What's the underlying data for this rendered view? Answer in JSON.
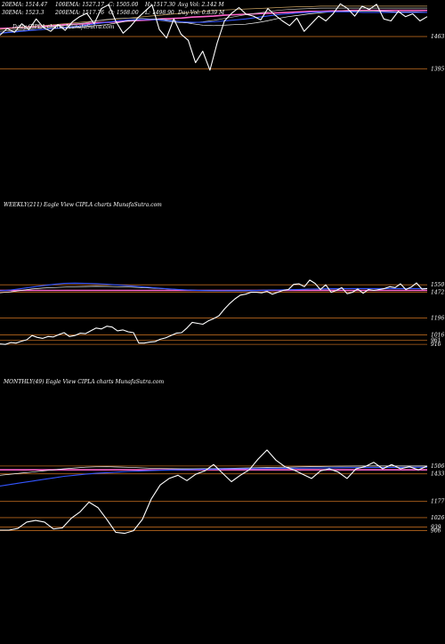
{
  "colors": {
    "background": "#000000",
    "price": "#ffffff",
    "level_line": "#b5651d",
    "ema20": "#ffffff",
    "ema30": "#c0c0c0",
    "ema100": "#c8a060",
    "ema200": "#ff66cc",
    "blue": "#3355ff"
  },
  "chart_data": [
    {
      "type": "line",
      "panel": "daily",
      "title": "",
      "stats": [
        "20EMA: 1514.47",
        "100EMA: 1527.17",
        "C: 1505.00",
        "H: 1517.30",
        "Avg Vol: 2.142 M",
        "30EMA: 1523.3",
        "200EMA: 1517.76",
        "O: 1508.00",
        "L: 1498.90",
        "Day Vol: 0.839 M"
      ],
      "caption": "Daily  CIPLA charts MunafaSutra.com",
      "level_labels": [
        "1463",
        "1395"
      ],
      "levels": [
        1463,
        1395
      ],
      "ylim": [
        1360,
        1540
      ],
      "price": [
        1466,
        1480,
        1472,
        1490,
        1478,
        1500,
        1482,
        1474,
        1488,
        1476,
        1494,
        1505,
        1512,
        1490,
        1522,
        1530,
        1495,
        1470,
        1484,
        1502,
        1516,
        1530,
        1478,
        1460,
        1500,
        1468,
        1455,
        1408,
        1432,
        1392,
        1450,
        1496,
        1512,
        1524,
        1510,
        1506,
        1498,
        1522,
        1508,
        1496,
        1486,
        1502,
        1474,
        1490,
        1506,
        1496,
        1511,
        1532,
        1522,
        1506,
        1527,
        1520,
        1531,
        1500,
        1496,
        1516,
        1505,
        1511,
        1496,
        1505
      ],
      "ema20": [
        1470,
        1473,
        1475,
        1477,
        1478,
        1480,
        1481,
        1482,
        1484,
        1486,
        1488,
        1492,
        1496,
        1498,
        1500,
        1500,
        1497,
        1494,
        1490,
        1487,
        1486,
        1487,
        1488,
        1489,
        1492,
        1496,
        1501,
        1505,
        1508,
        1511,
        1513,
        1515,
        1516,
        1517,
        1517,
        1517,
        1516,
        1515,
        1515,
        1515,
        1514
      ],
      "ema30": [
        1474,
        1476,
        1478,
        1480,
        1482,
        1484,
        1486,
        1489,
        1492,
        1496,
        1499,
        1501,
        1502,
        1502,
        1500,
        1497,
        1494,
        1492,
        1492,
        1494,
        1497,
        1501,
        1505,
        1509,
        1512,
        1515,
        1518,
        1520,
        1521,
        1522,
        1523,
        1523,
        1523,
        1523,
        1523,
        1523,
        1523,
        1523,
        1523,
        1523,
        1523
      ],
      "ema100": [
        1478,
        1480,
        1482,
        1484,
        1486,
        1488,
        1490,
        1492,
        1494,
        1496,
        1498,
        1500,
        1502,
        1504,
        1506,
        1508,
        1510,
        1512,
        1514,
        1516,
        1518,
        1519,
        1520,
        1521,
        1522,
        1523,
        1524,
        1525,
        1526,
        1526,
        1527,
        1527,
        1527,
        1527,
        1527,
        1527,
        1527,
        1527,
        1527,
        1527,
        1527
      ],
      "ema200": [
        1480,
        1481,
        1482,
        1484,
        1485,
        1486,
        1488,
        1489,
        1490,
        1492,
        1493,
        1494,
        1496,
        1497,
        1498,
        1500,
        1501,
        1502,
        1504,
        1505,
        1506,
        1508,
        1509,
        1510,
        1511,
        1512,
        1513,
        1514,
        1515,
        1516,
        1516,
        1517,
        1517,
        1518,
        1518,
        1518,
        1518,
        1518,
        1518,
        1518,
        1518
      ],
      "blue": [
        1470,
        1472,
        1474,
        1476,
        1478,
        1480,
        1482,
        1484,
        1487,
        1490,
        1493,
        1496,
        1498,
        1499,
        1499,
        1498,
        1496,
        1494,
        1493,
        1493,
        1494,
        1496,
        1498,
        1500,
        1503,
        1506,
        1509,
        1511,
        1513,
        1514,
        1515,
        1515,
        1515,
        1515,
        1514,
        1514,
        1514,
        1514,
        1514,
        1514,
        1514
      ]
    },
    {
      "type": "line",
      "panel": "weekly",
      "title": "",
      "caption": "WEEKLY(211) Eagle  View  CIPLA charts MunafaSutra.com",
      "level_labels": [
        "1550",
        "1472",
        "1196",
        "1016",
        "961",
        "916"
      ],
      "levels": [
        1550,
        1472,
        1196,
        1016,
        961,
        916
      ],
      "ylim": [
        870,
        1760
      ],
      "price": [
        920,
        915,
        935,
        930,
        950,
        965,
        1010,
        990,
        980,
        1000,
        995,
        1020,
        1040,
        1000,
        1010,
        1035,
        1030,
        1060,
        1090,
        1080,
        1110,
        1100,
        1060,
        1070,
        1050,
        1040,
        930,
        930,
        940,
        945,
        970,
        985,
        1010,
        1035,
        1040,
        1090,
        1150,
        1140,
        1130,
        1165,
        1190,
        1220,
        1290,
        1350,
        1400,
        1440,
        1450,
        1470,
        1470,
        1465,
        1480,
        1450,
        1470,
        1490,
        1500,
        1555,
        1560,
        1530,
        1600,
        1565,
        1500,
        1550,
        1470,
        1490,
        1520,
        1455,
        1470,
        1505,
        1460,
        1500,
        1490,
        1500,
        1510,
        1530,
        1520,
        1560,
        1500,
        1525,
        1570,
        1505,
        1510
      ],
      "ema20": [
        1465,
        1475,
        1490,
        1505,
        1515,
        1520,
        1525,
        1530,
        1532,
        1534,
        1533,
        1530,
        1526,
        1521,
        1516,
        1510,
        1504,
        1498,
        1493,
        1490,
        1488,
        1487,
        1488,
        1489,
        1491,
        1493,
        1495,
        1498,
        1500,
        1503,
        1505,
        1506,
        1507,
        1508,
        1508,
        1508,
        1508,
        1508,
        1508,
        1508,
        1508
      ],
      "ema200": [
        1490,
        1490,
        1490,
        1490,
        1490,
        1490,
        1490,
        1490,
        1490,
        1490,
        1490,
        1490,
        1490,
        1490,
        1490,
        1490,
        1490,
        1490,
        1490,
        1490,
        1490,
        1490,
        1490,
        1490,
        1490,
        1490,
        1490,
        1490,
        1490,
        1490,
        1490,
        1490,
        1490,
        1490,
        1490,
        1490,
        1490,
        1490,
        1490,
        1490,
        1490
      ],
      "blue": [
        1485,
        1495,
        1510,
        1525,
        1540,
        1555,
        1565,
        1568,
        1566,
        1562,
        1556,
        1548,
        1540,
        1531,
        1522,
        1513,
        1505,
        1498,
        1492,
        1488,
        1486,
        1485,
        1486,
        1487,
        1489,
        1492,
        1495,
        1498,
        1501,
        1504,
        1506,
        1508,
        1509,
        1510,
        1510,
        1510,
        1510,
        1510,
        1510,
        1510,
        1510
      ]
    },
    {
      "type": "line",
      "panel": "monthly",
      "title": "",
      "caption": "MONTHLY(49) Eagle  View  CIPLA charts MunafaSutra.com",
      "level_labels": [
        "1506",
        "1433",
        "1177",
        "1026",
        "939",
        "906"
      ],
      "levels": [
        1506,
        1433,
        1177,
        1026,
        939,
        906
      ],
      "ylim": [
        860,
        1720
      ],
      "price": [
        910,
        910,
        925,
        985,
        1000,
        985,
        920,
        930,
        1020,
        1080,
        1170,
        1120,
        1010,
        890,
        880,
        905,
        1010,
        1200,
        1330,
        1390,
        1420,
        1370,
        1430,
        1460,
        1520,
        1440,
        1360,
        1420,
        1470,
        1570,
        1655,
        1560,
        1500,
        1470,
        1430,
        1390,
        1460,
        1480,
        1450,
        1390,
        1480,
        1500,
        1540,
        1480,
        1520,
        1480,
        1500,
        1470,
        1505
      ],
      "ema20": [
        1420,
        1430,
        1440,
        1450,
        1460,
        1470,
        1480,
        1488,
        1495,
        1498,
        1499,
        1497,
        1494,
        1490,
        1486,
        1483,
        1481,
        1480,
        1480,
        1481,
        1482,
        1484,
        1486,
        1488,
        1490,
        1492,
        1494,
        1496,
        1498,
        1500,
        1502,
        1503,
        1504,
        1505,
        1506,
        1506,
        1506,
        1506,
        1506,
        1506,
        1506
      ],
      "ema200": [
        1470,
        1470,
        1470,
        1470,
        1470,
        1470,
        1470,
        1470,
        1470,
        1470,
        1470,
        1470,
        1470,
        1470,
        1470,
        1470,
        1470,
        1470,
        1470,
        1470,
        1470,
        1470,
        1470,
        1470,
        1470,
        1470,
        1470,
        1470,
        1470,
        1470,
        1470,
        1470,
        1470,
        1470,
        1470,
        1470,
        1470,
        1470,
        1470,
        1470,
        1470
      ],
      "blue": [
        1320,
        1335,
        1350,
        1365,
        1380,
        1395,
        1410,
        1420,
        1430,
        1438,
        1444,
        1450,
        1455,
        1459,
        1463,
        1466,
        1469,
        1471,
        1473,
        1475,
        1477,
        1479,
        1480,
        1481,
        1482,
        1483,
        1484,
        1485,
        1486,
        1487,
        1488,
        1489,
        1490,
        1491,
        1492,
        1492,
        1493,
        1493,
        1494,
        1494,
        1494
      ]
    }
  ]
}
